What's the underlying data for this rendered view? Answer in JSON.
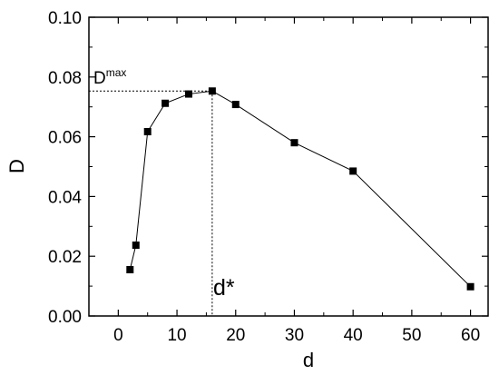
{
  "chart_data": {
    "type": "line",
    "title": "",
    "xlabel": "d",
    "ylabel": "D",
    "xlim": [
      -5,
      63
    ],
    "ylim": [
      0.0,
      0.1
    ],
    "x_ticks": [
      0,
      10,
      20,
      30,
      40,
      50,
      60
    ],
    "x_tick_labels": [
      "0",
      "10",
      "20",
      "30",
      "40",
      "50",
      "60"
    ],
    "y_ticks": [
      0.0,
      0.02,
      0.04,
      0.06,
      0.08,
      0.1
    ],
    "y_tick_labels": [
      "0.00",
      "0.02",
      "0.04",
      "0.06",
      "0.08",
      "0.10"
    ],
    "grid": false,
    "legend": "none",
    "marker": "square",
    "line_color": "#000000",
    "marker_color": "#000000",
    "series": [
      {
        "x": [
          2,
          3,
          5,
          8,
          12,
          16,
          20,
          30,
          40,
          60
        ],
        "y": [
          0.0155,
          0.0237,
          0.0617,
          0.0712,
          0.0743,
          0.0753,
          0.0708,
          0.058,
          0.0485,
          0.0098
        ]
      }
    ],
    "annotations": {
      "dmax_base": "D",
      "dmax_sup": "max",
      "dstar": "d*",
      "dstar_x": 16,
      "dmax_y": 0.0753
    }
  }
}
